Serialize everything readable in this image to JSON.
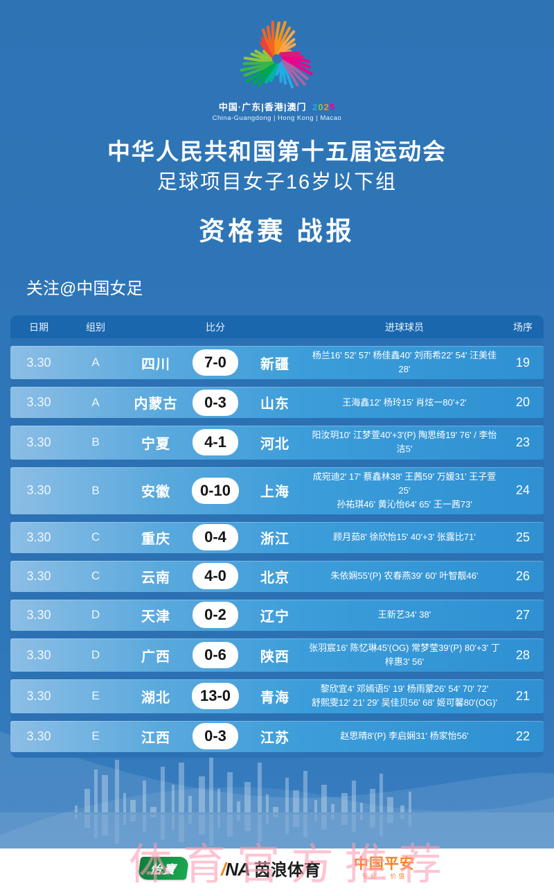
{
  "event": {
    "logo_caption_cn": "中国·广东|香港|澳门",
    "logo_caption_year": "2025",
    "logo_caption_en": "China-Guangdong | Hong Kong | Macao",
    "title": "中华人民共和国第十五届运动会",
    "subtitle": "足球项目女子16岁以下组",
    "section": "资格赛 战报",
    "follow": "关注@中国女足"
  },
  "table": {
    "headers": {
      "date": "日期",
      "group": "组别",
      "score": "比分",
      "scorers": "进球球员",
      "order": "场序"
    },
    "rows": [
      {
        "date": "3.30",
        "group": "A",
        "home": "四川",
        "score": "7-0",
        "away": "新疆",
        "scorers": [
          "杨兰16' 52' 57' 杨佳鑫40' 刘雨希22' 54' 汪美佳28'"
        ],
        "order": "19"
      },
      {
        "date": "3.30",
        "group": "A",
        "home": "内蒙古",
        "score": "0-3",
        "away": "山东",
        "scorers": [
          "王海鑫12' 杨玲15' 肖炫一80'+2'"
        ],
        "order": "20"
      },
      {
        "date": "3.30",
        "group": "B",
        "home": "宁夏",
        "score": "4-1",
        "away": "河北",
        "scorers": [
          "阳汝玥10' 江梦萱40'+3'(P) 陶思绮19' 76' / 李怡洁5'"
        ],
        "order": "23"
      },
      {
        "date": "3.30",
        "group": "B",
        "home": "安徽",
        "score": "0-10",
        "away": "上海",
        "scorers": [
          "成宛迪2' 17' 蔡鑫林38' 王茜59' 万媛31' 王子萱25'",
          "孙祐琪46' 黄沁怡64' 65' 王一茜73'"
        ],
        "order": "24"
      },
      {
        "date": "3.30",
        "group": "C",
        "home": "重庆",
        "score": "0-4",
        "away": "浙江",
        "scorers": [
          "顾月茹8' 徐欣怡15' 40'+3' 张露比71'"
        ],
        "order": "25"
      },
      {
        "date": "3.30",
        "group": "C",
        "home": "云南",
        "score": "4-0",
        "away": "北京",
        "scorers": [
          "朱依娴55'(P) 农春燕39' 60' 叶智靓46'"
        ],
        "order": "26"
      },
      {
        "date": "3.30",
        "group": "D",
        "home": "天津",
        "score": "0-2",
        "away": "辽宁",
        "scorers": [
          "王新艺34' 38'"
        ],
        "order": "27"
      },
      {
        "date": "3.30",
        "group": "D",
        "home": "广西",
        "score": "0-6",
        "away": "陕西",
        "scorers": [
          "张羽宸16' 陈忆琳45'(OG) 常梦莹39'(P) 80'+3' 丁梓惠3' 56'"
        ],
        "order": "28"
      },
      {
        "date": "3.30",
        "group": "E",
        "home": "湖北",
        "score": "13-0",
        "away": "青海",
        "scorers": [
          "黎欣宜4' 邓嫣语5' 19' 杨雨蒙26' 54' 70' 72'",
          "舒熙雯12' 21' 29' 吴佳贝56' 68' 姬可馨80'(OG)'"
        ],
        "order": "21"
      },
      {
        "date": "3.30",
        "group": "E",
        "home": "江西",
        "score": "0-3",
        "away": "江苏",
        "scorers": [
          "赵思晴8'(P) 李启娴31' 杨家怡56'"
        ],
        "order": "22"
      }
    ]
  },
  "footer": {
    "watermark": "体育官方推荐",
    "sponsors": {
      "yibao_label": "怡寶",
      "ina_mark": "NA",
      "ina_name": "茵浪体育",
      "pingan_name": "中国平安",
      "pingan_tagline": "专业 · 价值"
    }
  },
  "colors": {
    "background": "#2e76b8",
    "table_header": "#1a67ae",
    "row_gradient_start": "#8cbee5",
    "row_gradient_end": "#2f90d2",
    "score_pill": "#ffffff",
    "watermark_pink": "#ff9db4",
    "year_digits": [
      "#27aae1",
      "#8dc63f",
      "#f7941d",
      "#ec008c"
    ]
  }
}
